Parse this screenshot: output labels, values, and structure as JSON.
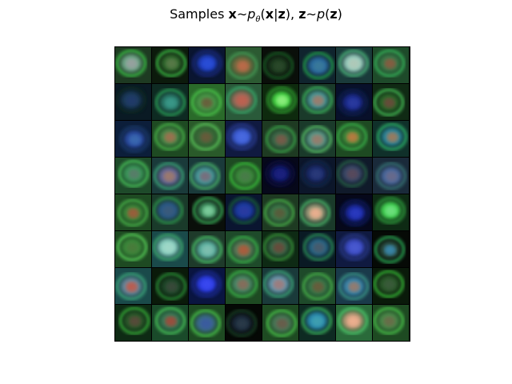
{
  "figure": {
    "title_prefix": "Samples ",
    "title_math": {
      "x": "x",
      "tilde": "∼",
      "p": "p",
      "theta": "θ",
      "lparen": "(",
      "x2": "x",
      "bar": "|",
      "z": "z",
      "rparen": ")",
      "comma": ", ",
      "z2": "z",
      "tilde2": "∼",
      "p2": "p",
      "lparen2": "(",
      "z3": "z",
      "rparen2": ")"
    }
  },
  "grid": {
    "rows": 8,
    "cols": 8,
    "cells": [
      {
        "bg": "#1e3a22",
        "blob": "#6fa98a",
        "core": "#9aa0a0",
        "edge": "#3ccf4a"
      },
      {
        "bg": "#0c1a0c",
        "blob": "#2f6a2d",
        "core": "#5a7a4a",
        "edge": "#45d250"
      },
      {
        "bg": "#0a1530",
        "blob": "#1f3ec0",
        "core": "#2c4fd8",
        "edge": "#1a2c80"
      },
      {
        "bg": "#2c5a32",
        "blob": "#7a6a40",
        "core": "#c06a4a",
        "edge": "#4aa25a"
      },
      {
        "bg": "#0a0f0a",
        "blob": "#1b3a1e",
        "core": "#2b4a2a",
        "edge": "#1f6a2a"
      },
      {
        "bg": "#10242e",
        "blob": "#2a6aa0",
        "core": "#3a7a9a",
        "edge": "#28b050"
      },
      {
        "bg": "#1a3a3a",
        "blob": "#9ad0c0",
        "core": "#b0c8b8",
        "edge": "#50c080"
      },
      {
        "bg": "#1e4a2a",
        "blob": "#3a7a4a",
        "core": "#8a5a40",
        "edge": "#3ac060"
      },
      {
        "bg": "#0a1a24",
        "blob": "#1a3a5a",
        "core": "#203a6a",
        "edge": "#0f2a20"
      },
      {
        "bg": "#0e2a22",
        "blob": "#2a7a6a",
        "core": "#3a9a8a",
        "edge": "#30b060"
      },
      {
        "bg": "#2a6a2a",
        "blob": "#4a9a4a",
        "core": "#6a5a3a",
        "edge": "#50d050"
      },
      {
        "bg": "#2a5a3a",
        "blob": "#9a6a5a",
        "core": "#c06050",
        "edge": "#3ab070"
      },
      {
        "bg": "#0e2a0e",
        "blob": "#40d040",
        "core": "#90f080",
        "edge": "#30a030"
      },
      {
        "bg": "#1a3a2a",
        "blob": "#4a9a9a",
        "core": "#a07a6a",
        "edge": "#40c060"
      },
      {
        "bg": "#08102a",
        "blob": "#1a2a8a",
        "core": "#2a3aa0",
        "edge": "#102050"
      },
      {
        "bg": "#102a14",
        "blob": "#2a6a2a",
        "core": "#6a4a3a",
        "edge": "#50d060"
      },
      {
        "bg": "#0c1e3a",
        "blob": "#2a4aa0",
        "core": "#3a6ab0",
        "edge": "#1a3a6a"
      },
      {
        "bg": "#1e4a22",
        "blob": "#4a8a4a",
        "core": "#a07050",
        "edge": "#50c050"
      },
      {
        "bg": "#2a5a2a",
        "blob": "#3a6a3a",
        "core": "#6a5a3a",
        "edge": "#60d060"
      },
      {
        "bg": "#101a40",
        "blob": "#3a5ad0",
        "core": "#4a6ae0",
        "edge": "#2a3a90"
      },
      {
        "bg": "#1e3a22",
        "blob": "#3a6a4a",
        "core": "#7a5a4a",
        "edge": "#40b050"
      },
      {
        "bg": "#1a3a2a",
        "blob": "#5a9a8a",
        "core": "#9a7a6a",
        "edge": "#60d070"
      },
      {
        "bg": "#1e4a22",
        "blob": "#3a8a3a",
        "core": "#c07a40",
        "edge": "#40c050"
      },
      {
        "bg": "#10302a",
        "blob": "#2a8aa0",
        "core": "#a07a5a",
        "edge": "#30c070"
      },
      {
        "bg": "#1e4a2a",
        "blob": "#3a9a5a",
        "core": "#5a7a6a",
        "edge": "#50d060"
      },
      {
        "bg": "#1a3a3a",
        "blob": "#6a6a9a",
        "core": "#a07a6a",
        "edge": "#40b080"
      },
      {
        "bg": "#1a3a3a",
        "blob": "#4aa0a0",
        "core": "#7a6a7a",
        "edge": "#50c070"
      },
      {
        "bg": "#1e4a22",
        "blob": "#3a8a3a",
        "core": "#4a7a4a",
        "edge": "#40d040"
      },
      {
        "bg": "#06081a",
        "blob": "#10186a",
        "core": "#1a2080",
        "edge": "#0a0e40"
      },
      {
        "bg": "#0c162a",
        "blob": "#1a2a6a",
        "core": "#2a3a7a",
        "edge": "#182a50"
      },
      {
        "bg": "#101a2a",
        "blob": "#3a4a6a",
        "core": "#5a4a5a",
        "edge": "#2a6a4a"
      },
      {
        "bg": "#1a2a3a",
        "blob": "#4a6aa0",
        "core": "#6a6a8a",
        "edge": "#3a7a7a"
      },
      {
        "bg": "#1e4a22",
        "blob": "#3a8a3a",
        "core": "#a05a3a",
        "edge": "#50c050"
      },
      {
        "bg": "#1a3a2a",
        "blob": "#2a5a8a",
        "core": "#3a5a7a",
        "edge": "#30a050"
      },
      {
        "bg": "#0a0f0a",
        "blob": "#3a8a5a",
        "core": "#80d0a0",
        "edge": "#40c060"
      },
      {
        "bg": "#0a1530",
        "blob": "#1a3aa0",
        "core": "#2a3aa0",
        "edge": "#1a6a3a"
      },
      {
        "bg": "#1e3a22",
        "blob": "#3a7a4a",
        "core": "#5a5a3a",
        "edge": "#50c050"
      },
      {
        "bg": "#1a3a2a",
        "blob": "#9a9a7a",
        "core": "#f0b090",
        "edge": "#50c070"
      },
      {
        "bg": "#06081a",
        "blob": "#1a2aa0",
        "core": "#2a3ac0",
        "edge": "#0a1a60"
      },
      {
        "bg": "#0e2a14",
        "blob": "#40d050",
        "core": "#70e080",
        "edge": "#30a040"
      },
      {
        "bg": "#1e4a22",
        "blob": "#3a8a3a",
        "core": "#4a7a3a",
        "edge": "#60e060"
      },
      {
        "bg": "#1a4a4a",
        "blob": "#8ad0c0",
        "core": "#a0d8c8",
        "edge": "#40b070"
      },
      {
        "bg": "#1e3a2a",
        "blob": "#5ab0a0",
        "core": "#80c0b0",
        "edge": "#50d070"
      },
      {
        "bg": "#1e4a2a",
        "blob": "#5a7a5a",
        "core": "#b05a3a",
        "edge": "#40c050"
      },
      {
        "bg": "#0e2a14",
        "blob": "#3a6a4a",
        "core": "#6a4a3a",
        "edge": "#40a040"
      },
      {
        "bg": "#0a1a24",
        "blob": "#2a6a8a",
        "core": "#4a5a6a",
        "edge": "#30a060"
      },
      {
        "bg": "#101a40",
        "blob": "#3a4ac0",
        "core": "#4a5ad0",
        "edge": "#2a3a8a"
      },
      {
        "bg": "#060a06",
        "blob": "#2a4a3a",
        "core": "#3a8ab0",
        "edge": "#30c060"
      },
      {
        "bg": "#1a4a4a",
        "blob": "#6a8aa0",
        "core": "#c05a4a",
        "edge": "#40b080"
      },
      {
        "bg": "#0a1a0a",
        "blob": "#1e4a2a",
        "core": "#3a4a3a",
        "edge": "#30a040"
      },
      {
        "bg": "#0a1540",
        "blob": "#2a3ae0",
        "core": "#3a4af0",
        "edge": "#1a2a90"
      },
      {
        "bg": "#1e4a22",
        "blob": "#4a8a6a",
        "core": "#8a6a5a",
        "edge": "#40c050"
      },
      {
        "bg": "#1a3a3a",
        "blob": "#6a9ab0",
        "core": "#a07a7a",
        "edge": "#40b080"
      },
      {
        "bg": "#1e4a2a",
        "blob": "#3a7a4a",
        "core": "#6a5a3a",
        "edge": "#50c050"
      },
      {
        "bg": "#1a3a4a",
        "blob": "#3a8ab0",
        "core": "#9a7a6a",
        "edge": "#40a090"
      },
      {
        "bg": "#0a1a0a",
        "blob": "#2a5a2a",
        "core": "#3a5a3a",
        "edge": "#40d040"
      },
      {
        "bg": "#0e2a14",
        "blob": "#2a5a2a",
        "core": "#5a4a3a",
        "edge": "#40c040"
      },
      {
        "bg": "#1a4a2a",
        "blob": "#3a7a5a",
        "core": "#a04a3a",
        "edge": "#50d060"
      },
      {
        "bg": "#1e4a22",
        "blob": "#3a6a8a",
        "core": "#3a5aa0",
        "edge": "#50d050"
      },
      {
        "bg": "#050805",
        "blob": "#1a2a3a",
        "core": "#2a3a4a",
        "edge": "#1a4a2a"
      },
      {
        "bg": "#1e4a22",
        "blob": "#4a7a5a",
        "core": "#6a5a4a",
        "edge": "#50d050"
      },
      {
        "bg": "#0e2a22",
        "blob": "#2a8ab0",
        "core": "#40a0b0",
        "edge": "#40c060"
      },
      {
        "bg": "#2a6a3a",
        "blob": "#c09a7a",
        "core": "#f0b090",
        "edge": "#50d070"
      },
      {
        "bg": "#1e4a22",
        "blob": "#4a8a4a",
        "core": "#6a6a4a",
        "edge": "#50d050"
      }
    ]
  }
}
